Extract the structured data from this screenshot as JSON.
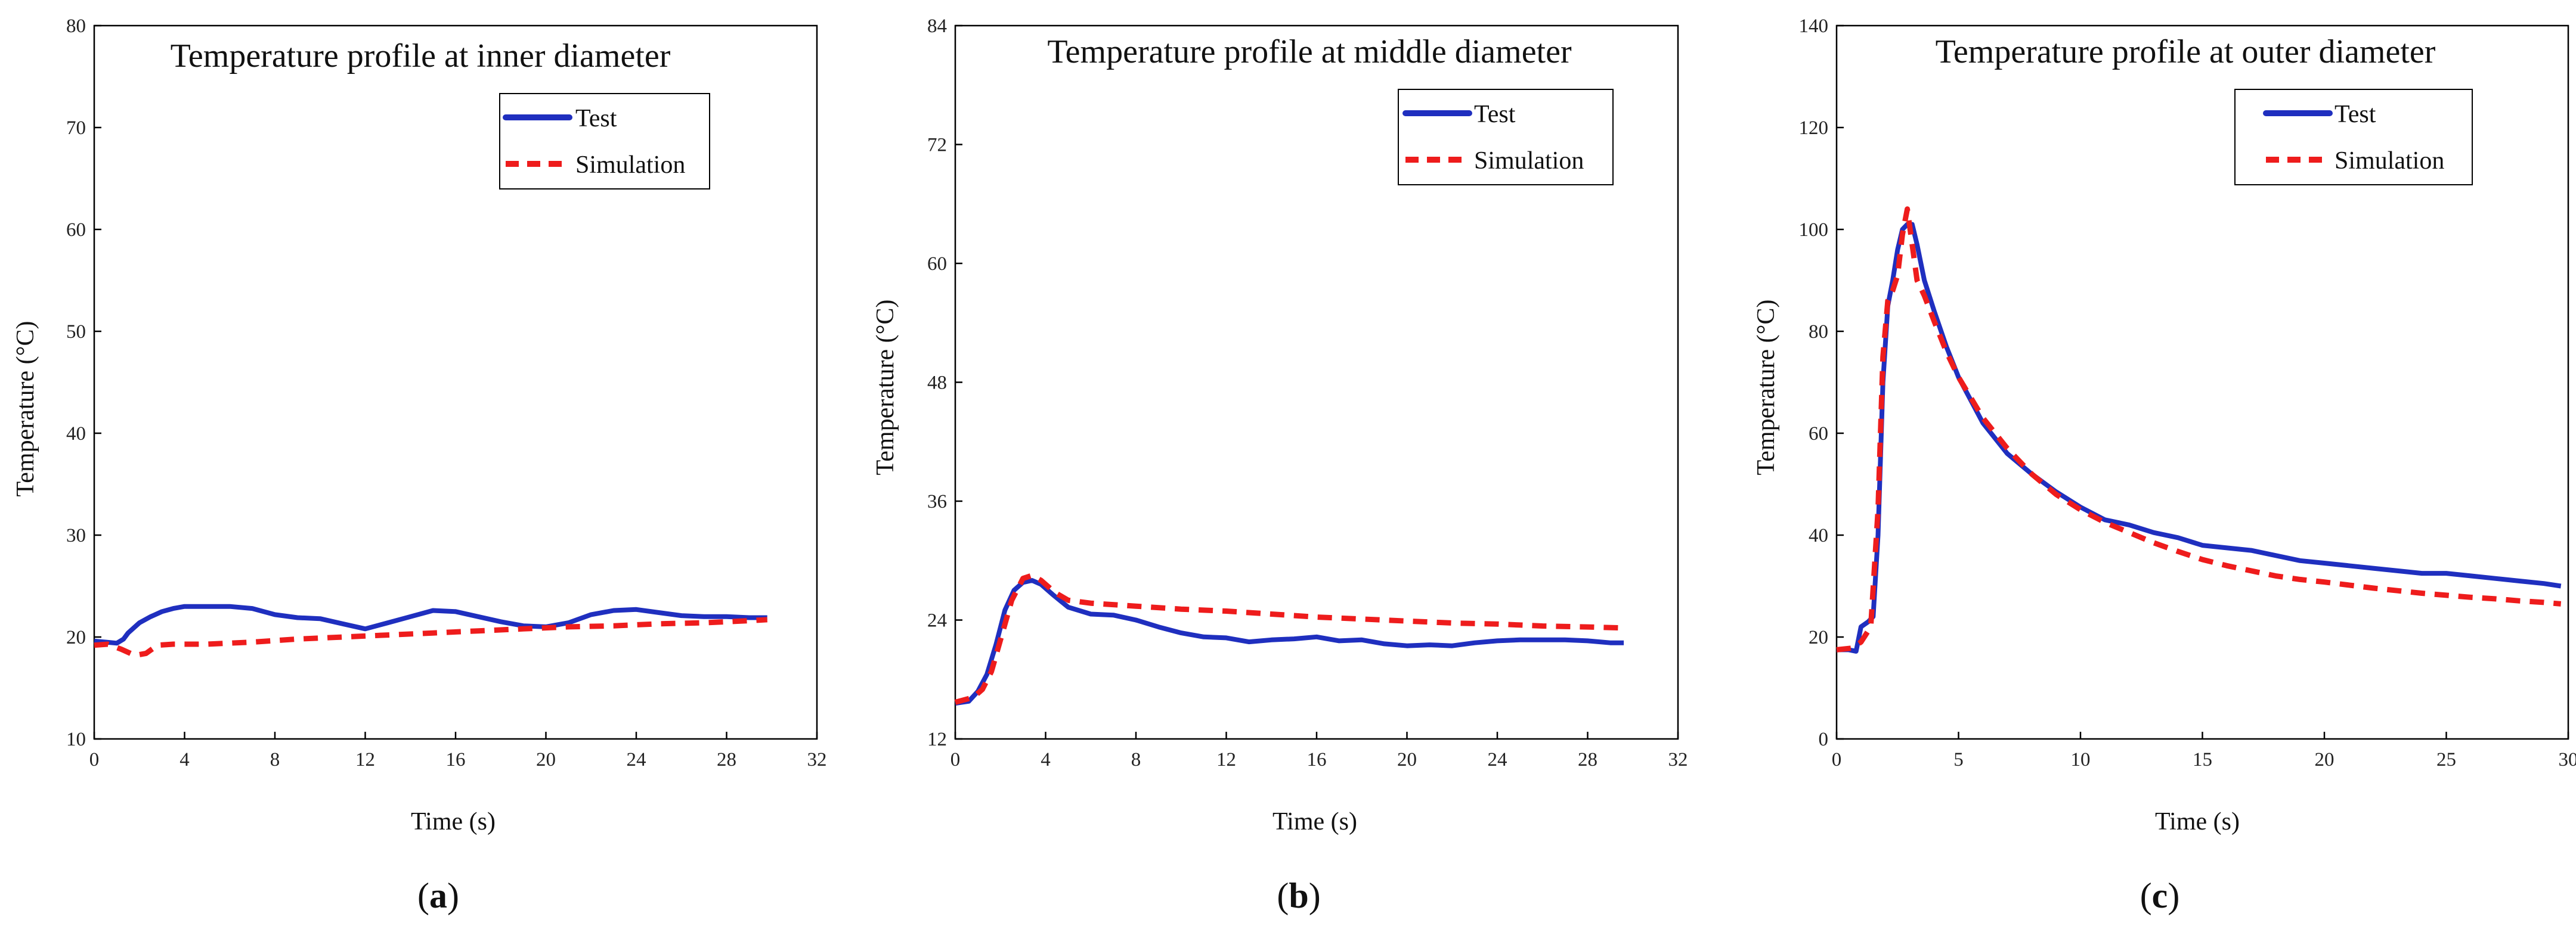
{
  "figure_captions": [
    "(a)",
    "(b)",
    "(c)"
  ],
  "caption_parts": [
    {
      "open": "(",
      "letter": "a",
      "close": ")"
    },
    {
      "open": "(",
      "letter": "b",
      "close": ")"
    },
    {
      "open": "(",
      "letter": "c",
      "close": ")"
    }
  ],
  "colors": {
    "test": "#1f2fbf",
    "simulation": "#ee1c1c",
    "axis": "#000000",
    "frame": "#000000"
  },
  "chart_data": [
    {
      "type": "line",
      "title": "Temperature profile at inner diameter",
      "xlabel": "Time (s)",
      "ylabel": "Temperature (°C)",
      "xlim": [
        0,
        32
      ],
      "ylim": [
        10,
        80
      ],
      "xticks": [
        0,
        4,
        8,
        12,
        16,
        20,
        24,
        28,
        32
      ],
      "yticks": [
        10,
        20,
        30,
        40,
        50,
        60,
        70,
        80
      ],
      "xtick_labels": [
        "0",
        "4",
        "8",
        "12",
        "16",
        "20",
        "24",
        "28",
        "32"
      ],
      "ytick_labels": [
        "10",
        "20",
        "30",
        "40",
        "50",
        "60",
        "70",
        "80"
      ],
      "legend": "top-right",
      "series": [
        {
          "name": "Test",
          "style": "solid",
          "x": [
            0,
            0.5,
            1.0,
            1.3,
            1.5,
            2.0,
            2.5,
            3,
            3.5,
            4,
            5,
            6,
            7,
            8,
            9,
            10,
            11,
            12,
            13,
            14,
            15,
            16,
            17,
            18,
            19,
            20,
            21,
            22,
            23,
            24,
            25,
            26,
            27,
            28,
            29,
            29.8
          ],
          "y": [
            19.6,
            19.5,
            19.4,
            19.8,
            20.4,
            21.4,
            22.0,
            22.5,
            22.8,
            23.0,
            23.0,
            23.0,
            22.8,
            22.2,
            21.9,
            21.8,
            21.3,
            20.8,
            21.4,
            22.0,
            22.6,
            22.5,
            22.0,
            21.5,
            21.1,
            21.0,
            21.4,
            22.2,
            22.6,
            22.7,
            22.4,
            22.1,
            22.0,
            22.0,
            21.9,
            21.9
          ]
        },
        {
          "name": "Simulation",
          "style": "dashed",
          "x": [
            0,
            0.6,
            1.2,
            1.8,
            2.3,
            2.8,
            3.5,
            5,
            7,
            9,
            11,
            13,
            15,
            17,
            19,
            21,
            23,
            25,
            27,
            29,
            29.8
          ],
          "y": [
            19.2,
            19.3,
            18.8,
            18.2,
            18.4,
            19.2,
            19.3,
            19.3,
            19.5,
            19.8,
            20.0,
            20.2,
            20.4,
            20.6,
            20.8,
            21.0,
            21.1,
            21.3,
            21.4,
            21.6,
            21.7
          ]
        }
      ]
    },
    {
      "type": "line",
      "title": "Temperature profile at middle diameter",
      "xlabel": "Time (s)",
      "ylabel": "Temperature (°C)",
      "xlim": [
        0,
        32
      ],
      "ylim": [
        12,
        84
      ],
      "xticks": [
        0,
        4,
        8,
        12,
        16,
        20,
        24,
        28,
        32
      ],
      "yticks": [
        12,
        24,
        36,
        48,
        60,
        72,
        84
      ],
      "xtick_labels": [
        "0",
        "4",
        "8",
        "12",
        "16",
        "20",
        "24",
        "28",
        "32"
      ],
      "ytick_labels": [
        "12",
        "24",
        "36",
        "48",
        "60",
        "72",
        "84"
      ],
      "legend": "top-right",
      "series": [
        {
          "name": "Test",
          "style": "solid",
          "x": [
            0,
            0.6,
            1.0,
            1.4,
            1.8,
            2.2,
            2.6,
            3.0,
            3.4,
            3.8,
            4.3,
            5,
            6,
            7,
            8,
            9,
            10,
            11,
            12,
            13,
            14,
            15,
            16,
            17,
            18,
            19,
            20,
            21,
            22,
            23,
            24,
            25,
            26,
            27,
            28,
            29,
            29.6
          ],
          "y": [
            15.6,
            15.8,
            16.8,
            18.5,
            21.5,
            25.0,
            27.0,
            27.8,
            28.0,
            27.6,
            26.6,
            25.3,
            24.6,
            24.5,
            24.0,
            23.3,
            22.7,
            22.3,
            22.2,
            21.8,
            22.0,
            22.1,
            22.3,
            21.9,
            22.0,
            21.6,
            21.4,
            21.5,
            21.4,
            21.7,
            21.9,
            22.0,
            22.0,
            22.0,
            21.9,
            21.7,
            21.7
          ]
        },
        {
          "name": "Simulation",
          "style": "dashed",
          "x": [
            0,
            0.8,
            1.2,
            1.6,
            2.0,
            2.5,
            3.0,
            3.4,
            3.8,
            4.4,
            5,
            6,
            8,
            10,
            12,
            14,
            16,
            18,
            20,
            22,
            24,
            26,
            28,
            29.6
          ],
          "y": [
            15.7,
            16.2,
            17.0,
            18.8,
            22.0,
            26.0,
            28.2,
            28.5,
            28.0,
            26.8,
            26.0,
            25.7,
            25.4,
            25.1,
            24.9,
            24.6,
            24.3,
            24.1,
            23.9,
            23.7,
            23.6,
            23.4,
            23.3,
            23.2
          ]
        }
      ]
    },
    {
      "type": "line",
      "title": "Temperature profile at outer diameter",
      "xlabel": "Time (s)",
      "ylabel": "Temperature (°C)",
      "xlim": [
        0,
        30
      ],
      "ylim": [
        0,
        140
      ],
      "xticks": [
        0,
        5,
        10,
        15,
        20,
        25,
        30
      ],
      "yticks": [
        0,
        20,
        40,
        60,
        80,
        100,
        120,
        140
      ],
      "xtick_labels": [
        "0",
        "5",
        "10",
        "15",
        "20",
        "25",
        "30"
      ],
      "ytick_labels": [
        "0",
        "20",
        "40",
        "60",
        "80",
        "100",
        "120",
        "140"
      ],
      "legend": "top-right",
      "series": [
        {
          "name": "Test",
          "style": "solid",
          "x": [
            0,
            0.5,
            0.8,
            1.0,
            1.3,
            1.5,
            1.7,
            1.9,
            2.1,
            2.3,
            2.5,
            2.7,
            2.9,
            3.1,
            3.3,
            3.6,
            4.0,
            4.5,
            5.0,
            6,
            7,
            8,
            9,
            10,
            11,
            12,
            13,
            14,
            15,
            16,
            17,
            18,
            19,
            20,
            21,
            22,
            23,
            24,
            25,
            26,
            27,
            28,
            29,
            29.7
          ],
          "y": [
            17.5,
            17.5,
            17.2,
            22.0,
            23.0,
            24.0,
            40.0,
            70.0,
            85.0,
            90.0,
            96.0,
            100.0,
            101.0,
            101.0,
            97.0,
            90.0,
            84.0,
            77.0,
            71.0,
            62.0,
            56.0,
            52.0,
            48.5,
            45.5,
            43.0,
            42.0,
            40.5,
            39.5,
            38.0,
            37.5,
            37.0,
            36.0,
            35.0,
            34.5,
            34.0,
            33.5,
            33.0,
            32.5,
            32.5,
            32.0,
            31.5,
            31.0,
            30.5,
            30.0
          ]
        },
        {
          "name": "Simulation",
          "style": "dashed",
          "x": [
            0,
            0.6,
            1.0,
            1.4,
            1.7,
            1.9,
            2.1,
            2.3,
            2.5,
            2.7,
            2.9,
            3.1,
            3.3,
            3.6,
            4.0,
            4.5,
            5.0,
            6,
            7,
            8,
            9,
            10,
            11,
            12,
            13,
            14,
            15,
            16,
            17,
            18,
            19,
            20,
            21,
            22,
            23,
            24,
            25,
            26,
            27,
            28,
            29,
            29.7
          ],
          "y": [
            17.5,
            17.8,
            19.0,
            22.0,
            45.0,
            75.0,
            86.0,
            88.0,
            91.0,
            99.0,
            104.0,
            97.0,
            90.0,
            87.0,
            82.0,
            76.0,
            71.0,
            63.0,
            57.0,
            52.0,
            48.0,
            45.0,
            42.5,
            40.5,
            38.5,
            36.8,
            35.2,
            34.0,
            33.0,
            32.0,
            31.3,
            30.8,
            30.2,
            29.6,
            29.1,
            28.6,
            28.2,
            27.8,
            27.5,
            27.1,
            26.8,
            26.5
          ]
        }
      ]
    }
  ]
}
